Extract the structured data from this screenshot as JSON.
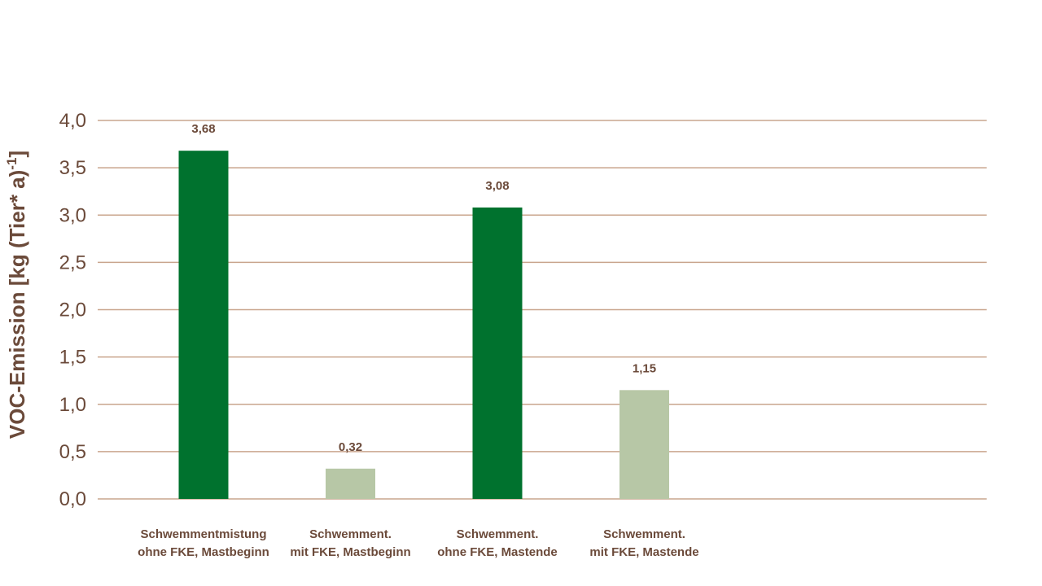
{
  "chart_data": {
    "type": "bar",
    "categories": [
      [
        "Schwemmentmistung",
        "ohne FKE, Mastbeginn"
      ],
      [
        "Schwemment.",
        "mit FKE, Mastbeginn"
      ],
      [
        "Schwemment.",
        "ohne FKE, Mastende"
      ],
      [
        "Schwemment.",
        "mit FKE, Mastende"
      ]
    ],
    "values": [
      3.68,
      0.32,
      3.08,
      1.15
    ],
    "value_labels": [
      "3,68",
      "0,32",
      "3,08",
      "1,15"
    ],
    "bar_colors": [
      "#00722e",
      "#b7c7a6",
      "#00722e",
      "#b7c7a6"
    ],
    "ylabel": "VOC-Emission [kg (Tier* a)",
    "ylabel_superscript": "-1",
    "ylabel_suffix": "]",
    "yticks": [
      0,
      0.5,
      1.0,
      1.5,
      2.0,
      2.5,
      3.0,
      3.5,
      4.0
    ],
    "ytick_labels": [
      "0,0",
      "0,5",
      "1,0",
      "1,5",
      "2,0",
      "2,5",
      "3,0",
      "3,5",
      "4,0"
    ],
    "ylim": [
      0,
      4
    ],
    "grid": true,
    "colors": {
      "grid": "#c9a58d",
      "text": "#6b4a3a"
    }
  }
}
